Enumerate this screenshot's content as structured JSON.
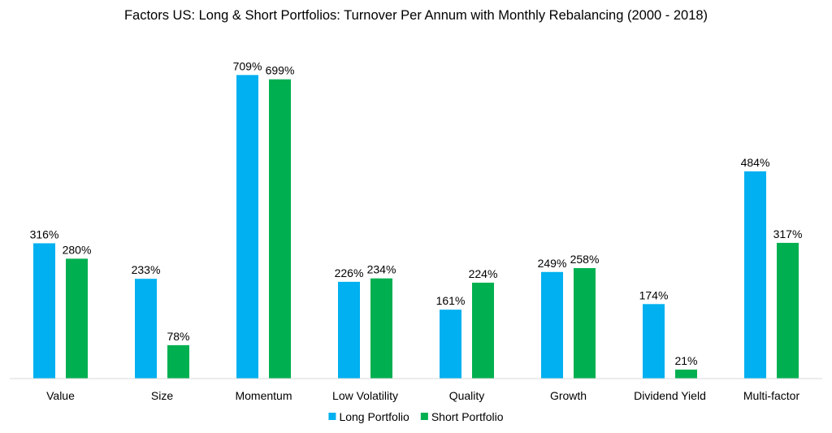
{
  "chart_data": {
    "type": "bar",
    "title": "Factors US: Long & Short Portfolios: Turnover Per Annum with Monthly Rebalancing (2000 - 2018)",
    "xlabel": "",
    "ylabel": "",
    "ylim": [
      0,
      750
    ],
    "grid": false,
    "legend_position": "bottom",
    "value_suffix": "%",
    "categories": [
      "Value",
      "Size",
      "Momentum",
      "Low Volatility",
      "Quality",
      "Growth",
      "Dividend Yield",
      "Multi-factor"
    ],
    "series": [
      {
        "name": "Long Portfolio",
        "color": "#00b0f0",
        "values": [
          316,
          233,
          709,
          226,
          161,
          249,
          174,
          484
        ]
      },
      {
        "name": "Short Portfolio",
        "color": "#00b050",
        "values": [
          280,
          78,
          699,
          234,
          224,
          258,
          21,
          317
        ]
      }
    ]
  }
}
